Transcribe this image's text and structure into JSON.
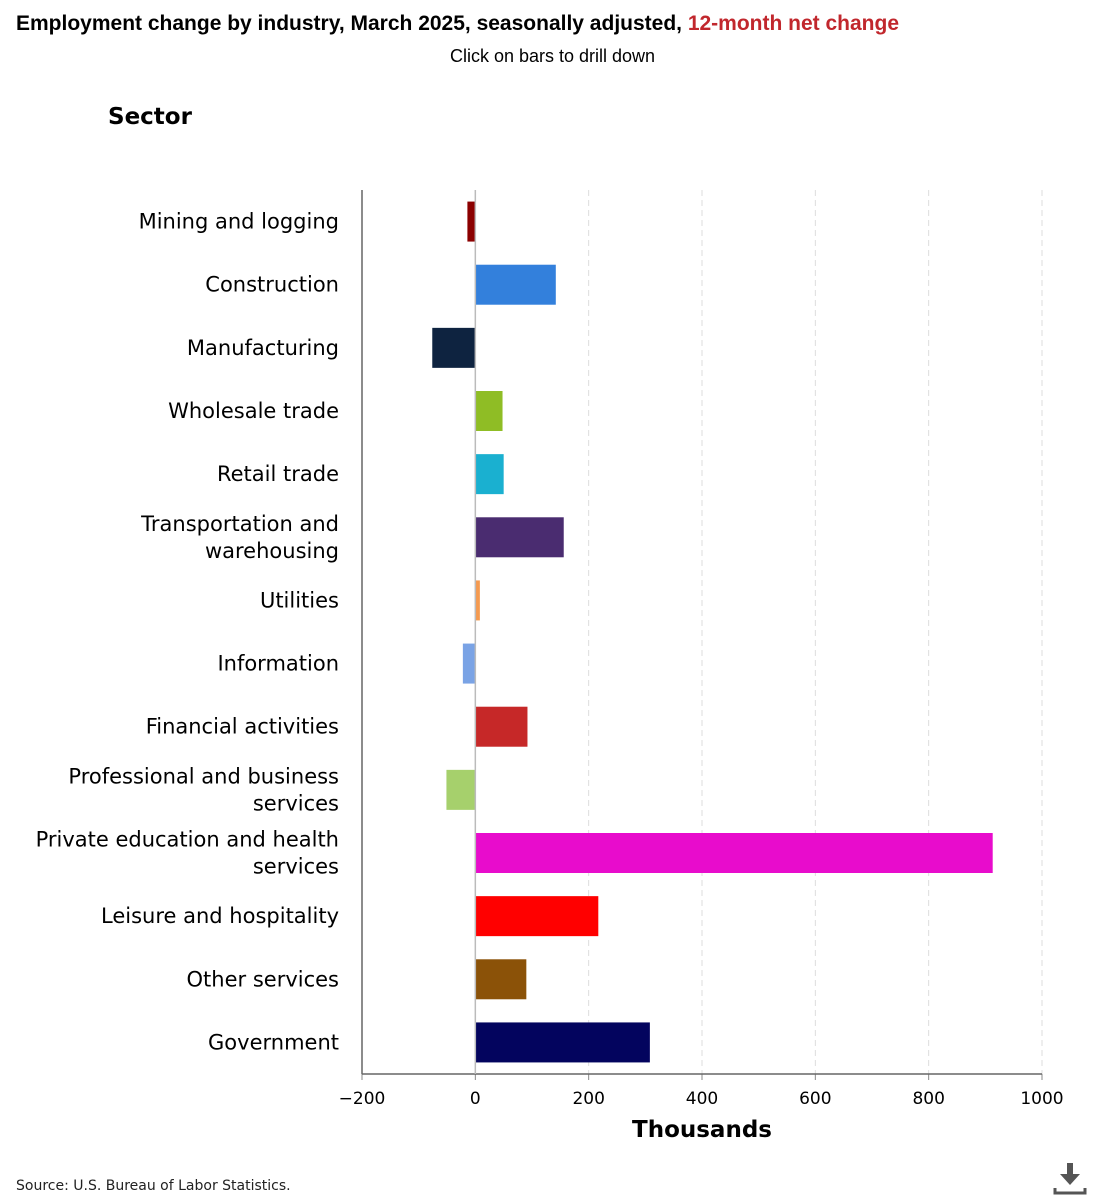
{
  "header": {
    "title_main": "Employment change by industry, March 2025, seasonally adjusted, ",
    "title_highlight": "12-month net change",
    "subtitle": "Click on bars to drill down"
  },
  "source": "Source: U.S. Bureau of Labor Statistics.",
  "download_icon": "download-icon",
  "chart_data": {
    "type": "bar",
    "orientation": "horizontal",
    "title": "Employment change by industry, March 2025, seasonally adjusted, 12-month net change",
    "ylabel": "Sector",
    "xlabel": "Thousands",
    "xlim": [
      -200,
      1000
    ],
    "xticks": [
      -200,
      0,
      200,
      400,
      600,
      800,
      1000
    ],
    "xtick_labels": [
      "−200",
      "0",
      "200",
      "400",
      "600",
      "800",
      "1000"
    ],
    "grid": "vertical dashed",
    "categories": [
      [
        "Mining and logging"
      ],
      [
        "Construction"
      ],
      [
        "Manufacturing"
      ],
      [
        "Wholesale trade"
      ],
      [
        "Retail trade"
      ],
      [
        "Transportation and",
        "warehousing"
      ],
      [
        "Utilities"
      ],
      [
        "Information"
      ],
      [
        "Financial activities"
      ],
      [
        "Professional and business",
        "services"
      ],
      [
        "Private education and health",
        "services"
      ],
      [
        "Leisure and hospitality"
      ],
      [
        "Other services"
      ],
      [
        "Government"
      ]
    ],
    "values": [
      -14,
      142,
      -76,
      48,
      50,
      156,
      8,
      -22,
      92,
      -51,
      913,
      217,
      90,
      308
    ],
    "colors": [
      "#8b0000",
      "#3380dc",
      "#0e2340",
      "#8fbd25",
      "#1ab0d0",
      "#4a2c70",
      "#f59a4f",
      "#7aa3e5",
      "#c62828",
      "#a6d06c",
      "#e80ccc",
      "#ff0000",
      "#8b5208",
      "#03045e"
    ]
  }
}
